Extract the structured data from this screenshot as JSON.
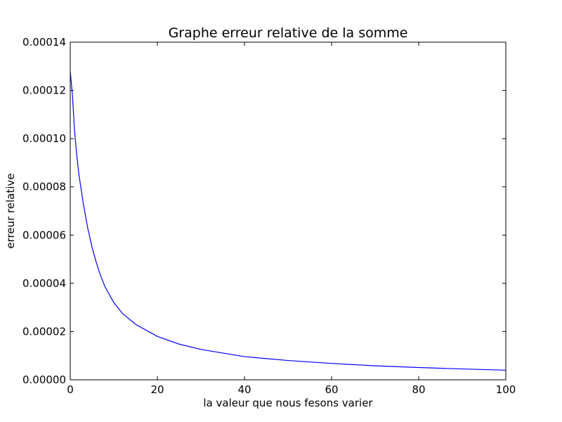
{
  "chart_data": {
    "type": "line",
    "title": "Graphe erreur relative de la somme",
    "xlabel": "la valeur que nous fesons varier",
    "ylabel": "erreur relative",
    "xlim": [
      0,
      100
    ],
    "ylim": [
      0,
      0.00014
    ],
    "x_ticks": [
      "0",
      "20",
      "40",
      "60",
      "80",
      "100"
    ],
    "y_ticks": [
      "0.00000",
      "0.00002",
      "0.00004",
      "0.00006",
      "0.00008",
      "0.00010",
      "0.00012",
      "0.00014"
    ],
    "grid": false,
    "legend": "none",
    "series": [
      {
        "color": "#0000ff",
        "x": [
          0,
          0.5,
          1,
          1.5,
          2,
          3,
          4,
          5,
          6,
          7,
          8,
          10,
          12,
          15,
          20,
          25,
          30,
          40,
          50,
          60,
          70,
          80,
          90,
          100
        ],
        "y": [
          0.000128,
          0.000118,
          0.000103,
          9.3e-05,
          8.5e-05,
          7.3e-05,
          6.3e-05,
          5.5e-05,
          4.85e-05,
          4.3e-05,
          3.85e-05,
          3.2e-05,
          2.75e-05,
          2.3e-05,
          1.8e-05,
          1.48e-05,
          1.26e-05,
          9.6e-06,
          8e-06,
          6.8e-06,
          5.8e-06,
          5.1e-06,
          4.5e-06,
          4e-06
        ]
      }
    ]
  }
}
